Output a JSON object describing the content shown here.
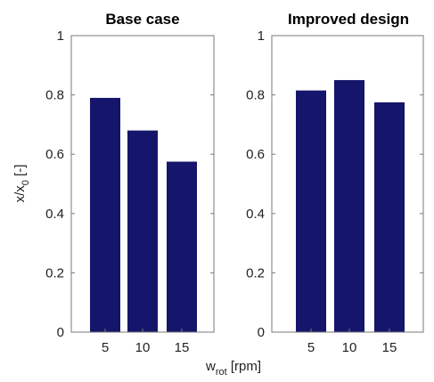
{
  "chart_data": {
    "type": "bar",
    "ylabel_main": "x/x",
    "ylabel_sub": "0",
    "ylabel_rest": " [-]",
    "xlabel_main": "w",
    "xlabel_sub": "rot",
    "xlabel_rest": " [rpm]",
    "ylim": [
      0,
      1
    ],
    "yticks": [
      0,
      0.2,
      0.4,
      0.6,
      0.8,
      1
    ],
    "ytick_labels": [
      "0",
      "0.2",
      "0.4",
      "0.6",
      "0.8",
      "1"
    ],
    "bar_color": "#15156b",
    "grid": false,
    "panels": [
      {
        "title": "Base case",
        "categories": [
          "5",
          "10",
          "15"
        ],
        "values": [
          0.79,
          0.68,
          0.575
        ]
      },
      {
        "title": "Improved design",
        "categories": [
          "5",
          "10",
          "15"
        ],
        "values": [
          0.815,
          0.85,
          0.775
        ]
      }
    ]
  }
}
